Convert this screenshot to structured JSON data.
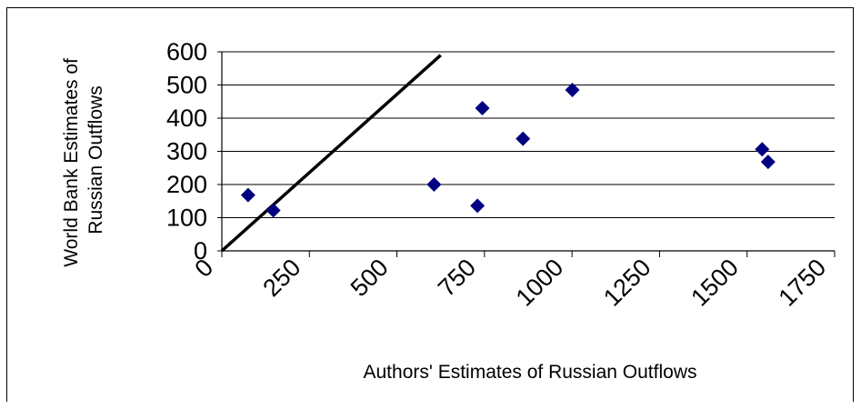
{
  "chart_data": {
    "type": "scatter",
    "title": "",
    "xlabel": "Authors' Estimates of Russian Outflows",
    "ylabel_lines": [
      "World Bank Estimates of",
      "Russian Outflows"
    ],
    "xlim": [
      0,
      1750
    ],
    "ylim": [
      0,
      600
    ],
    "x_ticks": [
      0,
      250,
      500,
      750,
      1000,
      1250,
      1500,
      1750
    ],
    "y_ticks": [
      0,
      100,
      200,
      300,
      400,
      500,
      600
    ],
    "x_tick_labels": [
      "0",
      "250",
      "500",
      "750",
      "1000",
      "1250",
      "1500",
      "1750"
    ],
    "y_tick_labels": [
      "0",
      "100",
      "200",
      "300",
      "400",
      "500",
      "600"
    ],
    "grid": "horizontal",
    "marker_color": "#000080",
    "reference_line": {
      "x": [
        0,
        625
      ],
      "y": [
        0,
        590
      ]
    },
    "series": [
      {
        "points": [
          {
            "x": 75,
            "y": 168
          },
          {
            "x": 147,
            "y": 122
          },
          {
            "x": 606,
            "y": 200
          },
          {
            "x": 730,
            "y": 136
          },
          {
            "x": 744,
            "y": 430
          },
          {
            "x": 860,
            "y": 338
          },
          {
            "x": 1001,
            "y": 485
          },
          {
            "x": 1543,
            "y": 306
          },
          {
            "x": 1560,
            "y": 268
          }
        ]
      }
    ]
  }
}
